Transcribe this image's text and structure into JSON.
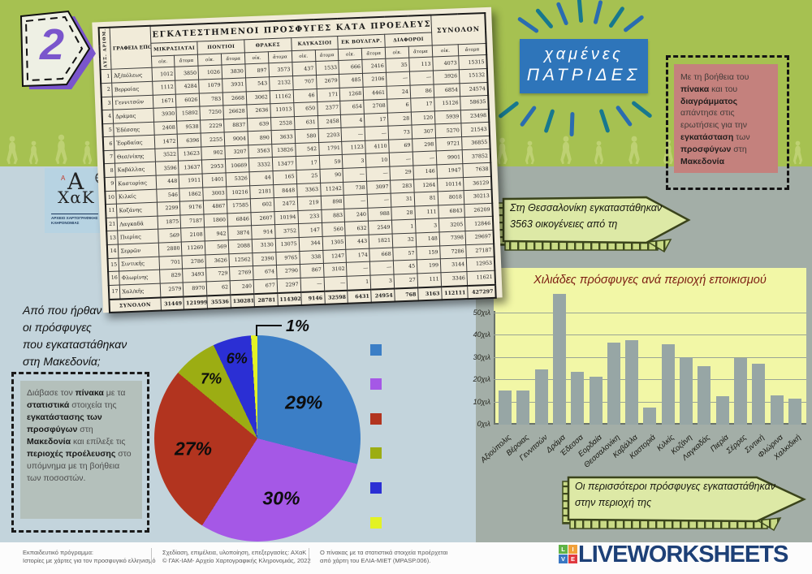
{
  "badge": {
    "number": "2"
  },
  "title": {
    "line1": "χαμένες",
    "line2": "ΠΑΤΡΙΔΕΣ"
  },
  "axak": {
    "top": "Α",
    "small_red": "A",
    "bottom": "ΧαΚ",
    "caption1": "ΑΡΧΕΙΟ ΧΑΡΤΟΓΡΑΦΙΚΗΣ",
    "caption2": "ΚΛΗΡΟΝΟΜΙΑΣ"
  },
  "pink_note": {
    "segments": [
      [
        "Με τη βοήθεια του ",
        0
      ],
      [
        "πίνακα",
        1
      ],
      [
        " και του ",
        0
      ],
      [
        "διαγράμματος",
        1
      ],
      [
        " απάντησε στις ερωτήσεις για την ",
        0
      ],
      [
        "εγκατάσταση",
        1
      ],
      [
        " των ",
        0
      ],
      [
        "προσφύγων",
        1
      ],
      [
        " στη ",
        0
      ],
      [
        "Μακεδονία",
        1
      ]
    ]
  },
  "question": {
    "lines": [
      "Από που ήρθαν",
      "οι πρόσφυγες",
      "που εγκαταστάθηκαν",
      "στη Μακεδονία;"
    ]
  },
  "gray_note": {
    "segments": [
      [
        "Διάβασε τον ",
        0
      ],
      [
        "πίνακα",
        1
      ],
      [
        " με τα ",
        0
      ],
      [
        "στατιστικά",
        1
      ],
      [
        " στοιχεία της ",
        0
      ],
      [
        "εγκατάστασης των προσφύγων",
        1
      ],
      [
        " στη ",
        0
      ],
      [
        "Μακεδονία",
        1
      ],
      [
        " και επίλεξε τις ",
        0
      ],
      [
        "περιοχές προέλευσης",
        1
      ],
      [
        " στο υπόμνημα με τη βοήθεια των ποσοστών.",
        0
      ]
    ]
  },
  "table": {
    "title": "ΕΓΚΑΤΕΣΤΗΜΕΝΟΙ ΠΡΟΣΦΥΓΕΣ ΚΑΤΑ ΠΡΟΕΛΕΥΣΕΙΣ",
    "corner_col1": "ΑΥΞ. ΑΡΙΘΜ.",
    "corner_col2": "ΓΡΑΦΕΙΑ ΕΠΟΙΚΙΣΜΟΥ",
    "total_col": "ΣΥΝΟΛΟΝ",
    "groups": [
      "ΜΙΚΡΑΣΙΑΤΑΙ",
      "ΠΟΝΤΙΟΙ",
      "ΘΡΑΚΕΣ",
      "ΚΑΥΚΑΣΙΟΙ",
      "ΕΚ ΒΟΥΛΓΑΡ.",
      "ΔΙΑΦΟΡΟΙ"
    ],
    "sub": [
      "οἰκ.",
      "ἄτομα"
    ],
    "rows": [
      [
        "1",
        "Ἀξ/πόλεως",
        "1012",
        "3850",
        "1026",
        "3830",
        "897",
        "3573",
        "437",
        "1533",
        "666",
        "2416",
        "35",
        "113",
        "4073",
        "15315"
      ],
      [
        "2",
        "Βερροίας",
        "1112",
        "4284",
        "1079",
        "3931",
        "543",
        "2132",
        "707",
        "2679",
        "485",
        "2106",
        "—",
        "—",
        "3926",
        "15132"
      ],
      [
        "3",
        "Γεννιτσῶν",
        "1671",
        "6026",
        "783",
        "2668",
        "3062",
        "11162",
        "46",
        "171",
        "1268",
        "4461",
        "24",
        "86",
        "6854",
        "24574"
      ],
      [
        "4",
        "Δράμας",
        "3930",
        "15892",
        "7250",
        "26628",
        "2636",
        "11013",
        "650",
        "2377",
        "654",
        "2708",
        "6",
        "17",
        "15126",
        "58635"
      ],
      [
        "5",
        "Ἐδέσσης",
        "2408",
        "9538",
        "2229",
        "8837",
        "639",
        "2528",
        "631",
        "2458",
        "4",
        "17",
        "28",
        "120",
        "5939",
        "23498"
      ],
      [
        "6",
        "Ἐορδαίας",
        "1472",
        "6396",
        "2255",
        "9004",
        "890",
        "3633",
        "580",
        "2203",
        "—",
        "—",
        "73",
        "307",
        "5270",
        "21543"
      ],
      [
        "7",
        "Θεσ/νίκης",
        "3522",
        "13623",
        "902",
        "3207",
        "3563",
        "13826",
        "542",
        "1791",
        "1123",
        "4110",
        "69",
        "298",
        "9721",
        "36855"
      ],
      [
        "8",
        "Καβάλλας",
        "3596",
        "13637",
        "2953",
        "10669",
        "3332",
        "13477",
        "17",
        "59",
        "3",
        "10",
        "—",
        "—",
        "9901",
        "37852"
      ],
      [
        "9",
        "Καστορίας",
        "448",
        "1911",
        "1401",
        "5326",
        "44",
        "165",
        "25",
        "90",
        "—",
        "—",
        "29",
        "146",
        "1947",
        "7638"
      ],
      [
        "10",
        "Κιλκίς",
        "546",
        "1862",
        "3003",
        "10216",
        "2181",
        "8448",
        "3363",
        "11242",
        "738",
        "3097",
        "283",
        "1264",
        "10114",
        "36129"
      ],
      [
        "11",
        "Κοζάνης",
        "2299",
        "9176",
        "4867",
        "17585",
        "602",
        "2472",
        "219",
        "898",
        "—",
        "—",
        "31",
        "81",
        "8018",
        "30213"
      ],
      [
        "21",
        "Λαγκαδᾶ",
        "1875",
        "7187",
        "1860",
        "6846",
        "2607",
        "10194",
        "233",
        "883",
        "240",
        "988",
        "28",
        "111",
        "6843",
        "26209"
      ],
      [
        "13",
        "Πιερίας",
        "569",
        "2108",
        "942",
        "3874",
        "914",
        "3752",
        "147",
        "560",
        "632",
        "2549",
        "1",
        "3",
        "3205",
        "12846"
      ],
      [
        "14",
        "Σερρῶν",
        "2880",
        "11260",
        "569",
        "2088",
        "3130",
        "13075",
        "344",
        "1305",
        "443",
        "1821",
        "32",
        "148",
        "7398",
        "29697"
      ],
      [
        "15",
        "Σιντικῆς",
        "701",
        "2786",
        "3626",
        "12562",
        "2390",
        "9765",
        "338",
        "1247",
        "174",
        "668",
        "57",
        "159",
        "7286",
        "27187"
      ],
      [
        "16",
        "Φλωρίνης",
        "829",
        "3493",
        "729",
        "2769",
        "674",
        "2790",
        "867",
        "3102",
        "—",
        "—",
        "45",
        "199",
        "3144",
        "12953"
      ],
      [
        "17",
        "Χαλ/κῆς",
        "2579",
        "8970",
        "62",
        "240",
        "677",
        "2297",
        "—",
        "—",
        "1",
        "3",
        "27",
        "111",
        "3346",
        "11621"
      ]
    ],
    "totals": [
      "",
      "ΣΥΝΟΛΟΝ",
      "31449",
      "121999",
      "35536",
      "130281",
      "28781",
      "114302",
      "9146",
      "32598",
      "6431",
      "24954",
      "768",
      "3163",
      "112111",
      "427297"
    ]
  },
  "banner_thessaloniki": {
    "line1": "Στη Θεσσαλονίκη εγκαταστάθηκαν",
    "line2": "3563 οικογένειες από τη"
  },
  "banner_region": {
    "line1": "Οι περισσότεροι πρόσφυγες εγκαταστάθηκαν",
    "line2": "στην περιοχή της"
  },
  "chart_data": [
    {
      "type": "bar",
      "title": "Χιλιάδες πρόσφυγες ανά περιοχή εποικισμού",
      "categories": [
        "Αξιούπολις",
        "Βέροιας",
        "Γεννιτσών",
        "Δράμα",
        "Έδεσσα",
        "Εορδαία",
        "Θεσσαλονίκη",
        "Καβάλλα",
        "Καστοριά",
        "Κιλκίς",
        "Κοζάνη",
        "Λαγκαδάς",
        "Πιερία",
        "Σέρρες",
        "Σιντική",
        "Φλώρινα",
        "Χαλκιδική"
      ],
      "values_persons": [
        15315,
        15132,
        24574,
        58635,
        23498,
        21543,
        36855,
        37852,
        7638,
        36129,
        30213,
        26209,
        12846,
        29697,
        27187,
        12953,
        11621
      ],
      "values_thousands": [
        15.3,
        15.1,
        24.6,
        58.6,
        23.5,
        21.5,
        36.9,
        37.9,
        7.6,
        36.1,
        30.2,
        26.2,
        12.8,
        29.7,
        27.2,
        13.0,
        11.6
      ],
      "y_ticks": [
        "0χιλ",
        "10χιλ",
        "20χιλ",
        "30χιλ",
        "40χιλ",
        "50χιλ"
      ],
      "ylabel": "",
      "xlabel": "",
      "ylim": [
        0,
        50
      ],
      "grid": true,
      "legend_position": "none",
      "bar_color": "#97a6a5",
      "background": "#f2f7a6"
    },
    {
      "type": "pie",
      "values_percent": [
        29,
        30,
        27,
        7,
        6,
        1
      ],
      "labels": [
        "29%",
        "30%",
        "27%",
        "7%",
        "6%",
        "1%"
      ],
      "colors": [
        "#3b7ec6",
        "#a558e6",
        "#b2341f",
        "#9cad13",
        "#2b2fd4",
        "#e3f224"
      ],
      "start_angle_deg": 0,
      "direction": "clockwise",
      "legend_swatch_colors": [
        "#3b7ec6",
        "#a558e6",
        "#b2341f",
        "#9cad13",
        "#2b2fd4",
        "#e3f224"
      ],
      "legend_position": "right"
    }
  ],
  "footer": {
    "col1_line1": "Εκπαιδευτικό πρόγραμμα:",
    "col1_line2": "Ιστορίες με χάρτες για τον προσφυγικό ελληνισμό",
    "col2_line1": "Σχεδίαση, επιμέλεια, υλοποίηση, επεξεργασίες: ΑΧαΚ",
    "col2_line2": "© ΓΑΚ-ΙΑΜ- Αρχείο Χαρτογραφικής Κληρονομιάς, 2022",
    "col3_line1": "Ο πίνακας με τα στατιστικά στοιχεία προέρχεται",
    "col3_line2": "από χάρτη του ΕΛΙΑ-ΜΙΕΤ (MPASP.006).",
    "logo_squares": [
      [
        "L",
        "#61b346"
      ],
      [
        "I",
        "#f0a13a"
      ],
      [
        "V",
        "#3a77c2"
      ],
      [
        "E",
        "#e0393f"
      ]
    ],
    "logo_text": "LIVEWORKSHEETS"
  },
  "colors": {
    "band_green": "#a6c151",
    "left_bg": "#c3d4dc",
    "right_bg": "#a3aea7",
    "title_box_blue": "#2e75ba",
    "pink_box": "#c4817d",
    "gray_box": "#b4c0bb",
    "banner_fill": "#dde9a6",
    "chart_bg": "#f2f7a6",
    "bar_gray": "#97a6a5",
    "chart_title_maroon": "#7c1d12",
    "badge_purple": "#7a55cc"
  }
}
